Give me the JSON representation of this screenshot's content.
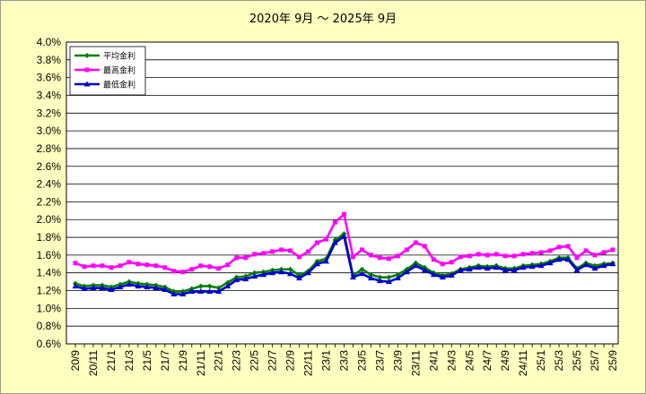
{
  "chart_data": {
    "type": "line",
    "title": "2020年 9月 ～ 2025年 9月",
    "xlabel": "",
    "ylabel": "",
    "ylim": [
      0.6,
      4.0
    ],
    "y_ticks": [
      "4.0%",
      "3.8%",
      "3.6%",
      "3.4%",
      "3.2%",
      "3.0%",
      "2.8%",
      "2.6%",
      "2.4%",
      "2.2%",
      "2.0%",
      "1.8%",
      "1.6%",
      "1.4%",
      "1.2%",
      "1.0%",
      "0.8%",
      "0.6%"
    ],
    "x_tick_labels": [
      "20/9",
      "20/11",
      "21/1",
      "21/3",
      "21/5",
      "21/7",
      "21/9",
      "21/11",
      "22/1",
      "22/3",
      "22/5",
      "22/7",
      "22/9",
      "22/11",
      "23/1",
      "23/3",
      "23/5",
      "23/7",
      "23/9",
      "23/11",
      "24/1",
      "24/3",
      "24/5",
      "24/7",
      "24/9",
      "24/11",
      "25/1",
      "25/3",
      "25/5",
      "25/7",
      "25/9"
    ],
    "categories": [
      "20/9",
      "20/10",
      "20/11",
      "20/12",
      "21/1",
      "21/2",
      "21/3",
      "21/4",
      "21/5",
      "21/6",
      "21/7",
      "21/8",
      "21/9",
      "21/10",
      "21/11",
      "21/12",
      "22/1",
      "22/2",
      "22/3",
      "22/4",
      "22/5",
      "22/6",
      "22/7",
      "22/8",
      "22/9",
      "22/10",
      "22/11",
      "22/12",
      "23/1",
      "23/2",
      "23/3",
      "23/4",
      "23/5",
      "23/6",
      "23/7",
      "23/8",
      "23/9",
      "23/10",
      "23/11",
      "23/12",
      "24/1",
      "24/2",
      "24/3",
      "24/4",
      "24/5",
      "24/6",
      "24/7",
      "24/8",
      "24/9",
      "24/10",
      "24/11",
      "24/12",
      "25/1",
      "25/2",
      "25/3",
      "25/4",
      "25/5",
      "25/6",
      "25/7",
      "25/8",
      "25/9"
    ],
    "grid": true,
    "legend_position": "top-left",
    "series": [
      {
        "name": "平均金利",
        "color": "#008000",
        "marker": "diamond",
        "values": [
          1.28,
          1.25,
          1.26,
          1.26,
          1.24,
          1.27,
          1.3,
          1.28,
          1.27,
          1.26,
          1.24,
          1.19,
          1.19,
          1.22,
          1.25,
          1.25,
          1.23,
          1.29,
          1.35,
          1.36,
          1.4,
          1.41,
          1.43,
          1.44,
          1.44,
          1.37,
          1.42,
          1.53,
          1.56,
          1.77,
          1.84,
          1.37,
          1.44,
          1.38,
          1.35,
          1.35,
          1.38,
          1.44,
          1.51,
          1.46,
          1.4,
          1.37,
          1.39,
          1.44,
          1.46,
          1.48,
          1.47,
          1.48,
          1.45,
          1.45,
          1.48,
          1.49,
          1.5,
          1.53,
          1.57,
          1.57,
          1.45,
          1.51,
          1.48,
          1.5,
          1.51
        ]
      },
      {
        "name": "最高金利",
        "color": "#ff00ff",
        "marker": "square",
        "values": [
          1.51,
          1.47,
          1.48,
          1.48,
          1.46,
          1.48,
          1.52,
          1.5,
          1.49,
          1.48,
          1.46,
          1.42,
          1.41,
          1.44,
          1.48,
          1.47,
          1.45,
          1.49,
          1.57,
          1.57,
          1.61,
          1.62,
          1.64,
          1.66,
          1.65,
          1.58,
          1.64,
          1.74,
          1.78,
          1.97,
          2.06,
          1.58,
          1.66,
          1.6,
          1.57,
          1.56,
          1.59,
          1.66,
          1.74,
          1.7,
          1.55,
          1.5,
          1.52,
          1.58,
          1.59,
          1.61,
          1.6,
          1.61,
          1.59,
          1.59,
          1.61,
          1.62,
          1.63,
          1.65,
          1.69,
          1.7,
          1.57,
          1.65,
          1.6,
          1.63,
          1.66
        ]
      },
      {
        "name": "最低金利",
        "color": "#0000cc",
        "marker": "triangle",
        "values": [
          1.25,
          1.22,
          1.23,
          1.23,
          1.21,
          1.24,
          1.27,
          1.25,
          1.24,
          1.23,
          1.21,
          1.16,
          1.16,
          1.19,
          1.19,
          1.19,
          1.19,
          1.25,
          1.32,
          1.33,
          1.36,
          1.38,
          1.4,
          1.41,
          1.39,
          1.34,
          1.4,
          1.5,
          1.53,
          1.74,
          1.81,
          1.35,
          1.39,
          1.34,
          1.31,
          1.3,
          1.34,
          1.41,
          1.48,
          1.43,
          1.38,
          1.35,
          1.37,
          1.43,
          1.44,
          1.46,
          1.45,
          1.46,
          1.43,
          1.43,
          1.46,
          1.47,
          1.48,
          1.51,
          1.55,
          1.55,
          1.43,
          1.49,
          1.45,
          1.48,
          1.5
        ]
      }
    ]
  }
}
